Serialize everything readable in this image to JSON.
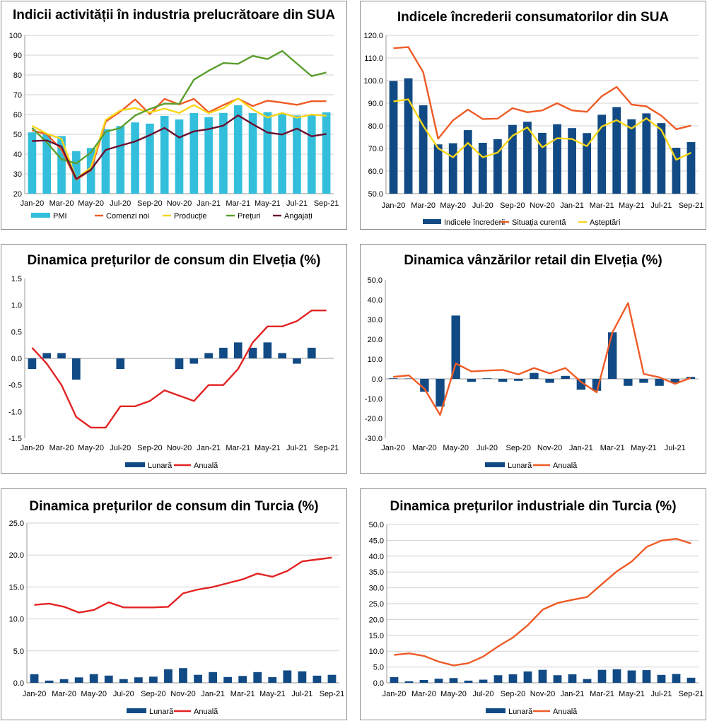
{
  "colors": {
    "pmi": "#33bfdc",
    "orange": "#ee5b26",
    "yellow": "#f7d51a",
    "green": "#5a9e2e",
    "maroon": "#6b1030",
    "navy": "#114a84",
    "red": "#e32222",
    "grid": "#d0d0d0",
    "axis": "#999999"
  },
  "chart_data": [
    {
      "type": "bar+line",
      "title": "Indicii activității în industria prelucrătoare din SUA",
      "x": [
        "Jan-20",
        "Feb-20",
        "Mar-20",
        "Apr-20",
        "May-20",
        "Jun-20",
        "Jul-20",
        "Aug-20",
        "Sep-20",
        "Oct-20",
        "Nov-20",
        "Dec-20",
        "Jan-21",
        "Feb-21",
        "Mar-21",
        "Apr-21",
        "May-21",
        "Jun-21",
        "Jul-21",
        "Aug-21",
        "Sep-21"
      ],
      "xlabels": [
        "Jan-20",
        "Mar-20",
        "May-20",
        "Jul-20",
        "Sep-20",
        "Nov-20",
        "Jan-21",
        "Mar-21",
        "May-21",
        "Jul-21",
        "Sep-21"
      ],
      "ylim": [
        20,
        100
      ],
      "yticks": [
        "20",
        "30",
        "40",
        "50",
        "60",
        "70",
        "80",
        "90",
        "100"
      ],
      "grid": true,
      "legend": "bottom",
      "series": [
        {
          "name": "PMI",
          "kind": "bar",
          "color": "#33bfdc",
          "values": [
            51,
            50.1,
            49.1,
            41.5,
            43.1,
            52.6,
            54.2,
            56,
            55.4,
            59.3,
            57.5,
            60.7,
            58.7,
            60.8,
            64.7,
            60.7,
            61.2,
            60.6,
            59.5,
            59.9,
            61.1
          ]
        },
        {
          "name": "Comenzi noi",
          "kind": "line",
          "color": "#ee5b26",
          "values": [
            52,
            50,
            42.2,
            27.1,
            31.8,
            56.4,
            61.5,
            67.6,
            60.2,
            67.9,
            65.1,
            67.9,
            61.1,
            64.8,
            68,
            64.3,
            67,
            66,
            64.9,
            66.7,
            66.7
          ]
        },
        {
          "name": "Producție",
          "kind": "line",
          "color": "#f7d51a",
          "values": [
            54.3,
            50.3,
            47.7,
            27.5,
            33.2,
            57.3,
            62.1,
            63.3,
            61,
            63,
            60.8,
            64.8,
            60.7,
            63.2,
            68.1,
            62.5,
            58.5,
            60.8,
            58.4,
            60,
            59.4
          ]
        },
        {
          "name": "Prețuri",
          "kind": "line",
          "color": "#5a9e2e",
          "values": [
            53.3,
            45.9,
            37.4,
            35.3,
            40.8,
            51.3,
            53.2,
            59.5,
            62.8,
            65.5,
            65.4,
            77.6,
            82.1,
            86,
            85.6,
            89.6,
            88,
            92.1,
            85.7,
            79.4,
            81.2
          ]
        },
        {
          "name": "Angajați",
          "kind": "line",
          "color": "#6b1030",
          "values": [
            46.6,
            46.9,
            43.8,
            27.5,
            32.1,
            42.1,
            44.3,
            46.4,
            49.6,
            53.2,
            48.4,
            51.5,
            52.6,
            54.4,
            59.6,
            55.1,
            50.9,
            49.9,
            52.9,
            49,
            50.2
          ]
        }
      ]
    },
    {
      "type": "bar+line",
      "title": "Indicele încrederii consumatorilor din SUA",
      "x": [
        "Jan-20",
        "Feb-20",
        "Mar-20",
        "Apr-20",
        "May-20",
        "Jun-20",
        "Jul-20",
        "Aug-20",
        "Sep-20",
        "Oct-20",
        "Nov-20",
        "Dec-20",
        "Jan-21",
        "Feb-21",
        "Mar-21",
        "Apr-21",
        "May-21",
        "Jun-21",
        "Jul-21",
        "Aug-21",
        "Sep-21"
      ],
      "xlabels": [
        "Jan-20",
        "Mar-20",
        "May-20",
        "Jul-20",
        "Sep-20",
        "Nov-20",
        "Jan-21",
        "Mar-21",
        "May-21",
        "Jul-21",
        "Sep-21"
      ],
      "ylim": [
        50,
        120
      ],
      "yticks": [
        "50.0",
        "60.0",
        "70.0",
        "80.0",
        "90.0",
        "100.0",
        "110.0",
        "120.0"
      ],
      "grid": true,
      "legend": "bottom",
      "series": [
        {
          "name": "Indicele încrederii",
          "kind": "bar",
          "color": "#114a84",
          "values": [
            99.8,
            101,
            89.1,
            71.8,
            72.3,
            78.1,
            72.5,
            74.1,
            80.4,
            81.8,
            76.9,
            80.7,
            79,
            76.8,
            84.9,
            88.3,
            82.9,
            85.5,
            81.2,
            70.3,
            72.8
          ]
        },
        {
          "name": "Situația curentă",
          "kind": "line",
          "color": "#ee5b26",
          "values": [
            114.3,
            114.8,
            103.7,
            74.3,
            82.4,
            87.2,
            83,
            83.2,
            87.8,
            86,
            86.8,
            90,
            86.8,
            86.2,
            93.1,
            97.2,
            89.4,
            88.6,
            84.5,
            78.5,
            80.1
          ]
        },
        {
          "name": "Așteptări",
          "kind": "line",
          "color": "#f7d51a",
          "values": [
            90.8,
            91.7,
            80,
            70.1,
            66.1,
            72.4,
            66.1,
            68.2,
            75.6,
            79.3,
            70.5,
            74.5,
            74.2,
            71,
            79.7,
            82.5,
            78.8,
            83.3,
            78.2,
            65,
            68.1
          ]
        }
      ]
    },
    {
      "type": "bar+line",
      "title": "Dinamica prețurilor de consum din Elveția (%)",
      "x": [
        "Jan-20",
        "Feb-20",
        "Mar-20",
        "Apr-20",
        "May-20",
        "Jun-20",
        "Jul-20",
        "Aug-20",
        "Sep-20",
        "Oct-20",
        "Nov-20",
        "Dec-20",
        "Jan-21",
        "Feb-21",
        "Mar-21",
        "Apr-21",
        "May-21",
        "Jun-21",
        "Jul-21",
        "Aug-21",
        "Sep-21"
      ],
      "xlabels": [
        "Jan-20",
        "Mar-20",
        "May-20",
        "Jul-20",
        "Sep-20",
        "Nov-20",
        "Jan-21",
        "Mar-21",
        "May-21",
        "Jul-21",
        "Sep-21"
      ],
      "ylim": [
        -1.5,
        1.5
      ],
      "yticks": [
        "-1.5",
        "-1.0",
        "-0.5",
        "0.0",
        "0.5",
        "1.0",
        "1.5"
      ],
      "grid": false,
      "legend": "bottom",
      "series": [
        {
          "name": "Lunară",
          "kind": "bar",
          "color": "#114a84",
          "values": [
            -0.2,
            0.1,
            0.1,
            -0.4,
            0,
            0,
            -0.2,
            0,
            0,
            0,
            -0.2,
            -0.1,
            0.1,
            0.2,
            0.3,
            0.2,
            0.3,
            0.1,
            -0.1,
            0.2,
            0
          ]
        },
        {
          "name": "Anuală",
          "kind": "line",
          "color": "#e32222",
          "values": [
            0.2,
            -0.1,
            -0.5,
            -1.1,
            -1.3,
            -1.3,
            -0.9,
            -0.9,
            -0.8,
            -0.6,
            -0.7,
            -0.8,
            -0.5,
            -0.5,
            -0.2,
            0.3,
            0.6,
            0.6,
            0.7,
            0.9,
            0.9
          ]
        }
      ]
    },
    {
      "type": "bar+line",
      "title": "Dinamica vânzărilor retail din Elveția (%)",
      "x": [
        "Jan-20",
        "Feb-20",
        "Mar-20",
        "Apr-20",
        "May-20",
        "Jun-20",
        "Jul-20",
        "Aug-20",
        "Sep-20",
        "Oct-20",
        "Nov-20",
        "Dec-20",
        "Jan-21",
        "Feb-21",
        "Mar-21",
        "Apr-21",
        "May-21",
        "Jun-21",
        "Jul-21",
        "Aug-21"
      ],
      "xlabels": [
        "Jan-20",
        "Mar-20",
        "May-20",
        "Jul-20",
        "Sep-20",
        "Nov-20",
        "Jan-21",
        "Mar-21",
        "May-21",
        "Jul-21"
      ],
      "ylim": [
        -30,
        50
      ],
      "yticks": [
        "-30.0",
        "-20.0",
        "-10.0",
        "0.0",
        "10.0",
        "20.0",
        "30.0",
        "40.0",
        "50.0"
      ],
      "grid": false,
      "legend": "bottom",
      "series": [
        {
          "name": "Lunară",
          "kind": "bar",
          "color": "#114a84",
          "values": [
            0.3,
            0.2,
            -6.5,
            -14,
            32,
            -1.5,
            0.3,
            -1.5,
            -1,
            3,
            -2,
            1.5,
            -5.5,
            -6,
            23.5,
            -3.5,
            -2,
            -3.5,
            -2,
            1
          ]
        },
        {
          "name": "Anuală",
          "kind": "line",
          "color": "#ee5b26",
          "values": [
            1,
            1.8,
            -5,
            -18.2,
            7.8,
            3.8,
            4.2,
            4.5,
            2.3,
            5.5,
            2.8,
            5.5,
            -1.5,
            -6.8,
            23.5,
            38.3,
            2.5,
            0.8,
            -2.5,
            0.5
          ]
        }
      ]
    },
    {
      "type": "bar+line",
      "title": "Dinamica prețurilor de consum din Turcia (%)",
      "x": [
        "Jan-20",
        "Feb-20",
        "Mar-20",
        "Apr-20",
        "May-20",
        "Jun-20",
        "Jul-20",
        "Aug-20",
        "Sep-20",
        "Oct-20",
        "Nov-20",
        "Dec-20",
        "Jan-21",
        "Feb-21",
        "Mar-21",
        "Apr-21",
        "May-21",
        "Jun-21",
        "Jul-21",
        "Aug-21",
        "Sep-21"
      ],
      "xlabels": [
        "Jan-20",
        "Mar-20",
        "May-20",
        "Jul-20",
        "Sep-20",
        "Nov-20",
        "Jan-21",
        "Mar-21",
        "May-21",
        "Jul-21",
        "Sep-21"
      ],
      "ylim": [
        0,
        25
      ],
      "yticks": [
        "0.0",
        "5.0",
        "10.0",
        "15.0",
        "20.0",
        "25.0"
      ],
      "grid": true,
      "legend": "bottom",
      "series": [
        {
          "name": "Lunară",
          "kind": "bar",
          "color": "#114a84",
          "values": [
            1.35,
            0.35,
            0.57,
            0.85,
            1.36,
            1.13,
            0.58,
            0.86,
            0.97,
            2.13,
            2.3,
            1.25,
            1.68,
            0.91,
            1.08,
            1.68,
            0.89,
            1.94,
            1.8,
            1.12,
            1.25
          ]
        },
        {
          "name": "Anuală",
          "kind": "line",
          "color": "#e32222",
          "values": [
            12.2,
            12.4,
            11.9,
            11,
            11.4,
            12.6,
            11.8,
            11.8,
            11.8,
            11.9,
            14,
            14.6,
            15,
            15.6,
            16.2,
            17.1,
            16.6,
            17.5,
            19,
            19.3,
            19.6
          ]
        }
      ]
    },
    {
      "type": "bar+line",
      "title": "Dinamica prețurilor industriale din Turcia (%)",
      "x": [
        "Jan-20",
        "Feb-20",
        "Mar-20",
        "Apr-20",
        "May-20",
        "Jun-20",
        "Jul-20",
        "Aug-20",
        "Sep-20",
        "Oct-20",
        "Nov-20",
        "Dec-20",
        "Jan-21",
        "Feb-21",
        "Mar-21",
        "Apr-21",
        "May-21",
        "Jun-21",
        "Jul-21",
        "Aug-21",
        "Sep-21"
      ],
      "xlabels": [
        "Jan-20",
        "Mar-20",
        "May-20",
        "Jul-20",
        "Sep-20",
        "Nov-20",
        "Jan-21",
        "Mar-21",
        "May-21",
        "Jul-21",
        "Sep-21"
      ],
      "ylim": [
        0,
        50
      ],
      "yticks": [
        "0.0",
        "5.0",
        "10.0",
        "15.0",
        "20.0",
        "25.0",
        "30.0",
        "35.0",
        "40.0",
        "45.0",
        "50.0"
      ],
      "grid": true,
      "legend": "bottom",
      "series": [
        {
          "name": "Lunară",
          "kind": "bar",
          "color": "#114a84",
          "values": [
            1.8,
            0.5,
            0.9,
            1.3,
            1.5,
            0.7,
            1,
            2.4,
            2.7,
            3.6,
            4.1,
            2.4,
            2.7,
            1.2,
            4.1,
            4.3,
            3.9,
            4,
            2.5,
            2.8,
            1.6
          ]
        },
        {
          "name": "Anuală",
          "kind": "line",
          "color": "#ee5b26",
          "values": [
            8.8,
            9.3,
            8.5,
            6.7,
            5.5,
            6.2,
            8.3,
            11.5,
            14.3,
            18.2,
            23.1,
            25.2,
            26.2,
            27.1,
            31.2,
            35.2,
            38.3,
            42.9,
            44.9,
            45.5,
            44
          ]
        }
      ]
    }
  ]
}
